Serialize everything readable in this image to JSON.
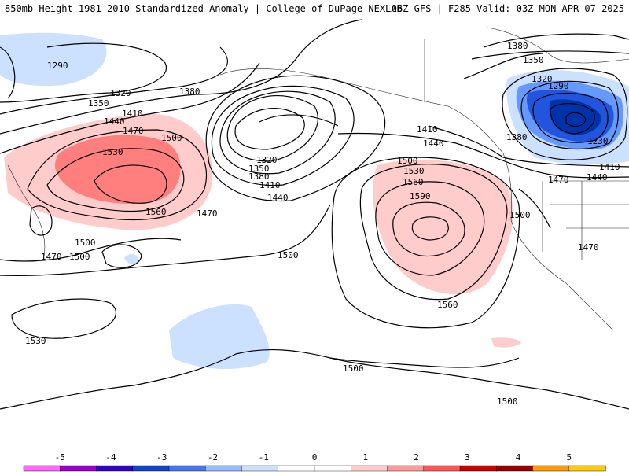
{
  "header": {
    "left": "850mb Height 1981-2010 Standardized Anomaly | College of DuPage NEXLAB",
    "right": "06Z GFS | F285 Valid: 03Z MON APR 07 2025"
  },
  "contour_labels": {
    "l1290a": "1290",
    "l1350a": "1350",
    "l1320a": "1320",
    "l1380a": "1380",
    "l1410a": "1410",
    "l1440a": "1440",
    "l1470a": "1470",
    "l1500a": "1500",
    "l1530a": "1530",
    "l1560a": "1560",
    "l1470b": "1470",
    "l1500b": "1500",
    "l1500c": "1500",
    "l1470c": "1470",
    "l1320b": "1320",
    "l1350b": "1350",
    "l1380b": "1380",
    "l1410b": "1410",
    "l1440b": "1440",
    "l1470d": "1470",
    "l1500d": "1500",
    "l1530b": "1530",
    "l1530c": "1530",
    "l1560b": "1560",
    "l1590a": "1590",
    "l1560c": "1560",
    "l1410c": "1410",
    "l1440c": "1440",
    "l1380c": "1380",
    "l1350c": "1350",
    "l1320c": "1320",
    "l1290b": "1290",
    "l1230a": "1230",
    "l1380d": "1380",
    "l1410d": "1410",
    "l1470e": "1470",
    "l1440d": "1440",
    "l1500e": "1500",
    "l1470f": "1470",
    "l1500f": "1500",
    "l1500g": "1500"
  },
  "colorbar": {
    "ticks": [
      "-5",
      "-4",
      "-3",
      "-2",
      "-1",
      "0",
      "1",
      "2",
      "3",
      "4",
      "5"
    ],
    "colors": [
      "#ff66ff",
      "#9900cc",
      "#3300cc",
      "#1144cc",
      "#4477ee",
      "#99bbff",
      "#cce0ff",
      "#ffffff",
      "#ffffff",
      "#ffcccc",
      "#ff9999",
      "#ff5555",
      "#cc0000",
      "#990000",
      "#ff9900",
      "#ffcc00"
    ]
  },
  "colors": {
    "pos1": "#ffcccc",
    "pos2": "#ff8080",
    "neg1": "#cce0ff",
    "neg2": "#6699ff",
    "neg3": "#2255dd",
    "neg4": "#0033aa"
  }
}
